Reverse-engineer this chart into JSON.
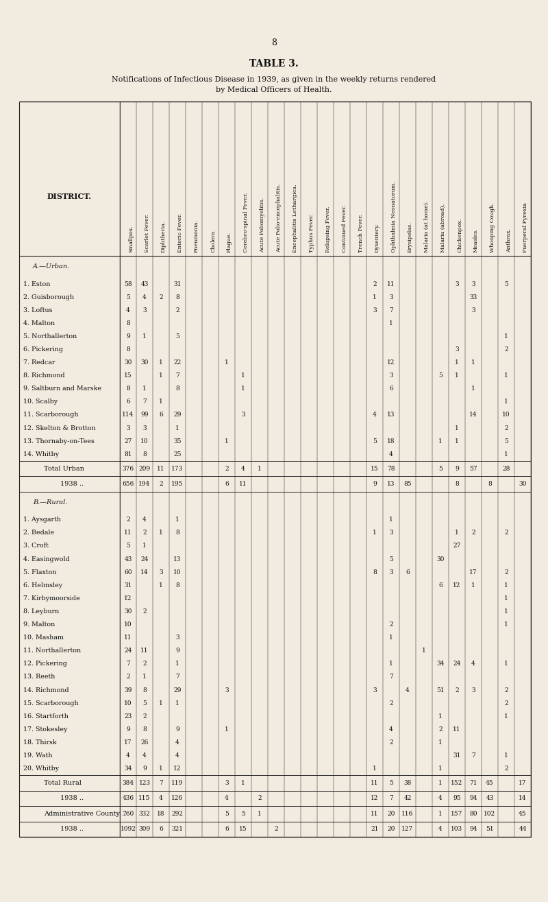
{
  "page_number": "8",
  "title": "TABLE 3.",
  "subtitle": "Notifications of Infectious Disease in 1939, as given in the weekly returns rendered\nby Medical Officers of Health.",
  "bg_color": "#f2ece0",
  "columns": [
    "Smallpox.",
    "Scarlet Fever.",
    "Diphtheria.",
    "Enteric Fever.",
    "Pneumonia.",
    "Cholera.",
    "Plague.",
    "Cerebro-spinal Fever.",
    "Acute Poliomyelitis.",
    "Acute Polio-encephalitis.",
    "Encephalitis Lethargica.",
    "Typhus Fever.",
    "Relapsing Fever.",
    "Continued Fever.",
    "Trench Fever.",
    "Dysentery.",
    "Ophthalmia Neonatorum.",
    "Erysipelas.",
    "Malaria (at home).",
    "Malaria (abroad).",
    "Chickenpox.",
    "Measles.",
    "Whooping Cough.",
    "Anthrax.",
    "Puerperal Pyrexia"
  ],
  "urban_districts": [
    "1. Eston",
    "2. Guisborough",
    "3. Loftus",
    "4. Malton",
    "5. Northallerton",
    "6. Pickering",
    "7. Redcar",
    "8. Richmond",
    "9. Saltburn and Marske",
    "10. Scalby",
    "11. Scarborough",
    "12. Skelton & Brotton",
    "13. Thornaby-on-Tees",
    "14. Whitby"
  ],
  "urban_data": [
    [
      "",
      58,
      43,
      "",
      31,
      "",
      "",
      "",
      "",
      "",
      "",
      "",
      "",
      "",
      "",
      "",
      2,
      11,
      "",
      "",
      "",
      3,
      3,
      "",
      5
    ],
    [
      "",
      5,
      4,
      2,
      8,
      "",
      "",
      "",
      "",
      "",
      "",
      "",
      "",
      "",
      "",
      "",
      1,
      3,
      "",
      "",
      "",
      "",
      33,
      "",
      ""
    ],
    [
      "",
      4,
      3,
      "",
      2,
      "",
      "",
      "",
      "",
      "",
      "",
      "",
      "",
      "",
      "",
      "",
      3,
      7,
      "",
      "",
      "",
      "",
      3,
      "",
      ""
    ],
    [
      "",
      8,
      "",
      "",
      "",
      "",
      "",
      "",
      "",
      "",
      "",
      "",
      "",
      "",
      "",
      "",
      "",
      1,
      "",
      "",
      "",
      "",
      "",
      "",
      ""
    ],
    [
      "",
      9,
      1,
      "",
      5,
      "",
      "",
      "",
      "",
      "",
      "",
      "",
      "",
      "",
      "",
      "",
      "",
      "",
      "",
      "",
      "",
      "",
      "",
      "",
      1
    ],
    [
      "",
      8,
      "",
      "",
      "",
      "",
      "",
      "",
      "",
      "",
      "",
      "",
      "",
      "",
      "",
      "",
      "",
      "",
      "",
      "",
      "",
      3,
      "",
      "",
      2
    ],
    [
      "",
      30,
      30,
      1,
      22,
      "",
      "",
      1,
      "",
      "",
      "",
      "",
      "",
      "",
      "",
      "",
      "",
      12,
      "",
      "",
      "",
      1,
      1,
      "",
      ""
    ],
    [
      "",
      15,
      "",
      1,
      7,
      "",
      "",
      "",
      1,
      "",
      "",
      "",
      "",
      "",
      "",
      "",
      "",
      3,
      "",
      "",
      5,
      1,
      "",
      "",
      1
    ],
    [
      "",
      8,
      1,
      "",
      8,
      "",
      "",
      "",
      1,
      "",
      "",
      "",
      "",
      "",
      "",
      "",
      "",
      6,
      "",
      "",
      "",
      "",
      1,
      "",
      ""
    ],
    [
      "",
      6,
      7,
      1,
      "",
      "",
      "",
      "",
      "",
      "",
      "",
      "",
      "",
      "",
      "",
      "",
      "",
      "",
      "",
      "",
      "",
      "",
      "",
      "",
      1
    ],
    [
      "",
      114,
      99,
      6,
      29,
      "",
      "",
      "",
      3,
      "",
      "",
      "",
      "",
      "",
      "",
      "",
      4,
      13,
      "",
      "",
      "",
      "",
      14,
      "",
      10
    ],
    [
      "",
      3,
      3,
      "",
      1,
      "",
      "",
      "",
      "",
      "",
      "",
      "",
      "",
      "",
      "",
      "",
      "",
      "",
      "",
      "",
      "",
      1,
      "",
      "",
      2
    ],
    [
      "",
      27,
      10,
      "",
      35,
      "",
      "",
      1,
      "",
      "",
      "",
      "",
      "",
      "",
      "",
      "",
      5,
      18,
      "",
      "",
      1,
      1,
      "",
      "",
      5
    ],
    [
      "",
      81,
      8,
      "",
      25,
      "",
      "",
      "",
      "",
      "",
      "",
      "",
      "",
      "",
      "",
      "",
      "",
      4,
      "",
      "",
      "",
      "",
      "",
      "",
      1
    ]
  ],
  "urban_total": [
    "",
    376,
    209,
    11,
    173,
    "",
    "",
    2,
    4,
    1,
    "",
    "",
    "",
    "",
    "",
    "",
    15,
    78,
    "",
    "",
    5,
    9,
    57,
    "",
    28
  ],
  "urban_1938": [
    "",
    656,
    194,
    2,
    195,
    "",
    "",
    6,
    11,
    "",
    "",
    "",
    "",
    "",
    "",
    "",
    9,
    13,
    85,
    "",
    "",
    8,
    "",
    8,
    "",
    30
  ],
  "rural_districts": [
    "1. Aysgarth",
    "2. Bedale",
    "3. Croft",
    "4. Easingwold",
    "5. Flaxton",
    "6. Helmsley",
    "7. Kirbymoorside",
    "8. Leyburn",
    "9. Malton",
    "10. Masham",
    "11. Northallerton",
    "12. Pickering",
    "13. Reeth",
    "14. Richmond",
    "15. Scarborough",
    "16. Startforth",
    "17. Stokesley",
    "18. Thirsk",
    "19. Wath",
    "20. Whitby"
  ],
  "rural_data": [
    [
      "",
      2,
      4,
      "",
      1,
      "",
      "",
      "",
      "",
      "",
      "",
      "",
      "",
      "",
      "",
      "",
      "",
      1,
      "",
      "",
      "",
      "",
      "",
      "",
      ""
    ],
    [
      "",
      11,
      2,
      1,
      8,
      "",
      "",
      "",
      "",
      "",
      "",
      "",
      "",
      "",
      "",
      "",
      1,
      3,
      "",
      "",
      "",
      1,
      2,
      "",
      2
    ],
    [
      "",
      5,
      1,
      "",
      "",
      "",
      "",
      "",
      "",
      "",
      "",
      "",
      "",
      "",
      "",
      "",
      "",
      "",
      "",
      "",
      "",
      27,
      "",
      "",
      ""
    ],
    [
      "",
      43,
      24,
      "",
      13,
      "",
      "",
      "",
      "",
      "",
      "",
      "",
      "",
      "",
      "",
      "",
      "",
      5,
      "",
      "",
      30,
      "",
      "",
      "",
      ""
    ],
    [
      "",
      60,
      14,
      3,
      10,
      "",
      "",
      "",
      "",
      "",
      "",
      "",
      "",
      "",
      "",
      "",
      8,
      3,
      6,
      "",
      "",
      "",
      17,
      "",
      2
    ],
    [
      "",
      31,
      "",
      1,
      8,
      "",
      "",
      "",
      "",
      "",
      "",
      "",
      "",
      "",
      "",
      "",
      "",
      "",
      "",
      "",
      6,
      12,
      1,
      "",
      1
    ],
    [
      "",
      12,
      "",
      "",
      "",
      "",
      "",
      "",
      "",
      "",
      "",
      "",
      "",
      "",
      "",
      "",
      "",
      "",
      "",
      "",
      "",
      "",
      "",
      "",
      1
    ],
    [
      "",
      30,
      2,
      "",
      "",
      "",
      "",
      "",
      "",
      "",
      "",
      "",
      "",
      "",
      "",
      "",
      "",
      "",
      "",
      "",
      "",
      "",
      "",
      "",
      1
    ],
    [
      "",
      10,
      "",
      "",
      "",
      "",
      "",
      "",
      "",
      "",
      "",
      "",
      "",
      "",
      "",
      "",
      "",
      2,
      "",
      "",
      "",
      "",
      "",
      "",
      1
    ],
    [
      "",
      11,
      "",
      "",
      3,
      "",
      "",
      "",
      "",
      "",
      "",
      "",
      "",
      "",
      "",
      "",
      "",
      1,
      "",
      "",
      "",
      "",
      "",
      "",
      ""
    ],
    [
      "",
      24,
      11,
      "",
      9,
      "",
      "",
      "",
      "",
      "",
      "",
      "",
      "",
      "",
      "",
      "",
      "",
      "",
      "",
      1,
      "",
      "",
      "",
      "",
      ""
    ],
    [
      "",
      7,
      2,
      "",
      1,
      "",
      "",
      "",
      "",
      "",
      "",
      "",
      "",
      "",
      "",
      "",
      "",
      1,
      "",
      "",
      34,
      24,
      4,
      "",
      1
    ],
    [
      "",
      2,
      1,
      "",
      7,
      "",
      "",
      "",
      "",
      "",
      "",
      "",
      "",
      "",
      "",
      "",
      "",
      7,
      "",
      "",
      "",
      "",
      "",
      "",
      ""
    ],
    [
      "",
      39,
      8,
      "",
      29,
      "",
      "",
      3,
      "",
      "",
      "",
      "",
      "",
      "",
      "",
      "",
      3,
      "",
      4,
      "",
      51,
      2,
      3,
      "",
      2
    ],
    [
      "",
      10,
      5,
      1,
      1,
      "",
      "",
      "",
      "",
      "",
      "",
      "",
      "",
      "",
      "",
      "",
      "",
      2,
      "",
      "",
      "",
      "",
      "",
      "",
      2
    ],
    [
      "",
      23,
      2,
      "",
      "",
      "",
      "",
      "",
      "",
      "",
      "",
      "",
      "",
      "",
      "",
      "",
      "",
      "",
      "",
      "",
      1,
      "",
      "",
      "",
      1
    ],
    [
      "",
      9,
      8,
      "",
      9,
      "",
      "",
      1,
      "",
      "",
      "",
      "",
      "",
      "",
      "",
      "",
      "",
      4,
      "",
      "",
      2,
      11,
      "",
      "",
      ""
    ],
    [
      "",
      17,
      26,
      "",
      4,
      "",
      "",
      "",
      "",
      "",
      "",
      "",
      "",
      "",
      "",
      "",
      "",
      2,
      "",
      "",
      1,
      "",
      "",
      "",
      ""
    ],
    [
      "",
      4,
      4,
      "",
      4,
      "",
      "",
      "",
      "",
      "",
      "",
      "",
      "",
      "",
      "",
      "",
      "",
      "",
      "",
      "",
      "",
      31,
      7,
      "",
      1
    ],
    [
      "",
      34,
      9,
      1,
      12,
      "",
      "",
      "",
      "",
      "",
      "",
      "",
      "",
      "",
      "",
      "",
      1,
      "",
      "",
      "",
      1,
      "",
      "",
      "",
      2
    ]
  ],
  "rural_total": [
    "",
    384,
    123,
    7,
    119,
    "",
    "",
    3,
    1,
    "",
    "",
    "",
    "",
    "",
    "",
    "",
    11,
    5,
    38,
    "",
    1,
    152,
    71,
    45,
    "",
    17
  ],
  "rural_1938": [
    "",
    436,
    115,
    4,
    126,
    "",
    "",
    4,
    "",
    2,
    "",
    "",
    "",
    "",
    "",
    "",
    12,
    7,
    42,
    "",
    4,
    95,
    94,
    43,
    "",
    14
  ],
  "admin_total": [
    "",
    760,
    332,
    18,
    292,
    "",
    "",
    5,
    5,
    1,
    "",
    "",
    "",
    "",
    "",
    "",
    11,
    20,
    116,
    "",
    1,
    157,
    80,
    102,
    "",
    45
  ],
  "admin_1938": [
    "",
    1092,
    309,
    6,
    321,
    "",
    "",
    6,
    15,
    "",
    2,
    "",
    "",
    "",
    "",
    "",
    21,
    20,
    127,
    "",
    4,
    103,
    94,
    51,
    "",
    44
  ]
}
